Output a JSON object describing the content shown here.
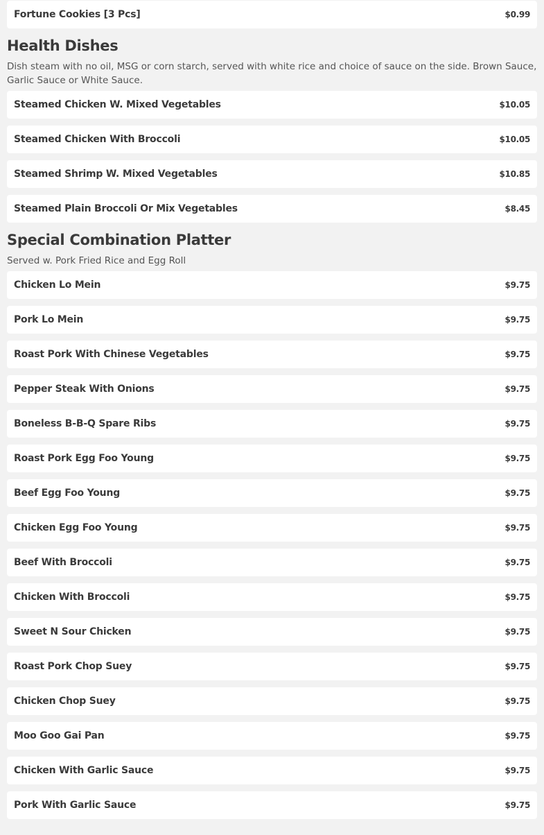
{
  "top_items": [
    {
      "name": "Fortune Cookies [3 Pcs]",
      "price": "$0.99"
    }
  ],
  "sections": [
    {
      "title": "Health Dishes",
      "description": "Dish steam with no oil, MSG or corn starch, served with white rice and choice of sauce on the side. Brown Sauce, Garlic Sauce or White Sauce.",
      "items": [
        {
          "name": "Steamed Chicken W. Mixed Vegetables",
          "price": "$10.05"
        },
        {
          "name": "Steamed Chicken With Broccoli",
          "price": "$10.05"
        },
        {
          "name": "Steamed Shrimp W. Mixed Vegetables",
          "price": "$10.85"
        },
        {
          "name": "Steamed Plain Broccoli Or Mix Vegetables",
          "price": "$8.45"
        }
      ]
    },
    {
      "title": "Special Combination Platter",
      "description": "Served w. Pork Fried Rice and Egg Roll",
      "items": [
        {
          "name": "Chicken Lo Mein",
          "price": "$9.75"
        },
        {
          "name": "Pork Lo Mein",
          "price": "$9.75"
        },
        {
          "name": "Roast Pork With Chinese Vegetables",
          "price": "$9.75"
        },
        {
          "name": "Pepper Steak With Onions",
          "price": "$9.75"
        },
        {
          "name": "Boneless B-B-Q Spare Ribs",
          "price": "$9.75"
        },
        {
          "name": "Roast Pork Egg Foo Young",
          "price": "$9.75"
        },
        {
          "name": "Beef Egg Foo Young",
          "price": "$9.75"
        },
        {
          "name": "Chicken Egg Foo Young",
          "price": "$9.75"
        },
        {
          "name": "Beef With Broccoli",
          "price": "$9.75"
        },
        {
          "name": "Chicken With Broccoli",
          "price": "$9.75"
        },
        {
          "name": "Sweet N Sour Chicken",
          "price": "$9.75"
        },
        {
          "name": "Roast Pork Chop Suey",
          "price": "$9.75"
        },
        {
          "name": "Chicken Chop Suey",
          "price": "$9.75"
        },
        {
          "name": "Moo Goo Gai Pan",
          "price": "$9.75"
        },
        {
          "name": "Chicken With Garlic Sauce",
          "price": "$9.75"
        },
        {
          "name": "Pork With Garlic Sauce",
          "price": "$9.75"
        }
      ]
    }
  ]
}
